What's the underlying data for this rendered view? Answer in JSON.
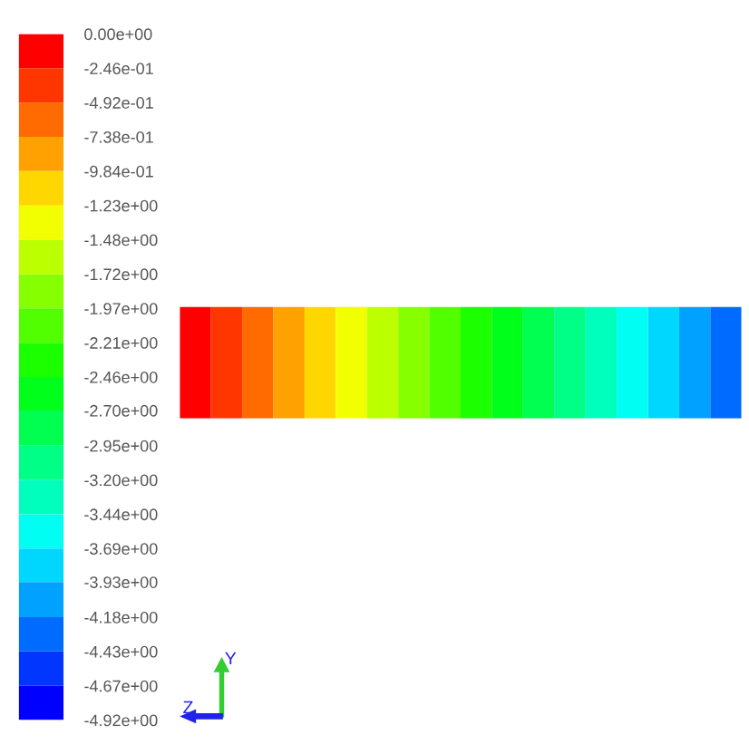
{
  "chart_data": {
    "type": "heatmap",
    "categories": [
      null,
      null,
      null,
      null,
      null,
      null,
      null,
      null,
      null,
      null,
      null,
      null,
      null,
      null,
      null,
      null,
      null,
      null
    ],
    "y_categories": [
      null
    ],
    "cells": [
      [
        -0.12,
        -0.37,
        -0.62,
        -0.86,
        -1.11,
        -1.35,
        -1.6,
        -1.85,
        -2.09,
        -2.34,
        -2.58,
        -2.83,
        -3.08,
        -3.32,
        -3.57,
        -3.81,
        -4.06,
        -4.31
      ]
    ],
    "clim": [
      -4.92,
      0
    ],
    "cticks": [
      {
        "value": 0,
        "label": "0.00e+00"
      },
      {
        "value": -0.246,
        "label": "-2.46e-01"
      },
      {
        "value": -0.492,
        "label": "-4.92e-01"
      },
      {
        "value": -0.738,
        "label": "-7.38e-01"
      },
      {
        "value": -0.984,
        "label": "-9.84e-01"
      },
      {
        "value": -1.23,
        "label": "-1.23e+00"
      },
      {
        "value": -1.476,
        "label": "-1.48e+00"
      },
      {
        "value": -1.722,
        "label": "-1.72e+00"
      },
      {
        "value": -1.968,
        "label": "-1.97e+00"
      },
      {
        "value": -2.214,
        "label": "-2.21e+00"
      },
      {
        "value": -2.46,
        "label": "-2.46e+00"
      },
      {
        "value": -2.7,
        "label": "-2.70e+00"
      },
      {
        "value": -2.952,
        "label": "-2.95e+00"
      },
      {
        "value": -3.198,
        "label": "-3.20e+00"
      },
      {
        "value": -3.444,
        "label": "-3.44e+00"
      },
      {
        "value": -3.69,
        "label": "-3.69e+00"
      },
      {
        "value": -3.93,
        "label": "-3.93e+00"
      },
      {
        "value": -4.182,
        "label": "-4.18e+00"
      },
      {
        "value": -4.428,
        "label": "-4.43e+00"
      },
      {
        "value": -4.674,
        "label": "-4.67e+00"
      },
      {
        "value": -4.92,
        "label": "-4.92e+00"
      }
    ],
    "annotations": [
      "Y",
      "Z"
    ]
  }
}
